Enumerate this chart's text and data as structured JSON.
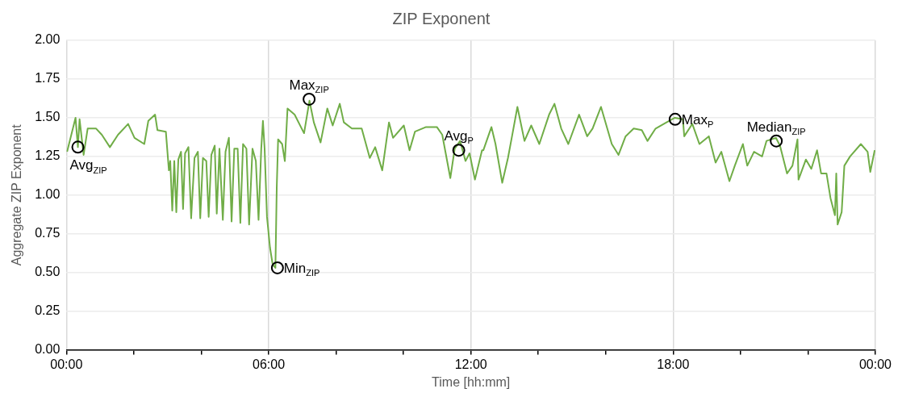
{
  "chart_data": {
    "type": "line",
    "title": "ZIP Exponent",
    "xlabel": "Time [hh:mm]",
    "ylabel": "Aggregate ZIP Exponent",
    "x": [
      0.02,
      0.27,
      0.34,
      0.39,
      0.51,
      0.63,
      0.88,
      1.05,
      1.29,
      1.53,
      1.83,
      2.02,
      2.31,
      2.43,
      2.63,
      2.7,
      2.95,
      3.04,
      3.08,
      3.14,
      3.2,
      3.26,
      3.32,
      3.4,
      3.46,
      3.52,
      3.62,
      3.7,
      3.8,
      3.9,
      3.97,
      4.05,
      4.15,
      4.22,
      4.3,
      4.4,
      4.46,
      4.54,
      4.64,
      4.72,
      4.82,
      4.9,
      4.98,
      5.08,
      5.16,
      5.24,
      5.34,
      5.42,
      5.52,
      5.62,
      5.7,
      5.78,
      5.83,
      5.88,
      5.95,
      6.04,
      6.12,
      6.2,
      6.24,
      6.28,
      6.4,
      6.48,
      6.56,
      6.77,
      7.05,
      7.21,
      7.34,
      7.54,
      7.74,
      7.9,
      8.11,
      8.23,
      8.47,
      8.76,
      9.0,
      9.16,
      9.37,
      9.57,
      9.69,
      10.01,
      10.18,
      10.34,
      10.67,
      10.99,
      11.15,
      11.39,
      11.52,
      11.68,
      11.84,
      11.96,
      12.12,
      12.33,
      12.37,
      12.61,
      12.73,
      12.93,
      13.1,
      13.22,
      13.38,
      13.59,
      13.79,
      14.03,
      14.32,
      14.48,
      14.68,
      14.89,
      15.21,
      15.45,
      15.61,
      15.86,
      16.18,
      16.38,
      16.59,
      16.83,
      17.07,
      17.24,
      17.48,
      17.72,
      18.05,
      18.29,
      18.33,
      18.57,
      18.78,
      19.06,
      19.26,
      19.43,
      19.67,
      19.83,
      20.07,
      20.2,
      20.4,
      20.64,
      20.77,
      21.05,
      21.17,
      21.38,
      21.54,
      21.69,
      21.72,
      21.94,
      22.1,
      22.27,
      22.39,
      22.55,
      22.67,
      22.8,
      22.84,
      22.88,
      23.0,
      23.08,
      23.25,
      23.57,
      23.77,
      23.85,
      23.98
    ],
    "series": [
      {
        "color": "#70ad47",
        "values": [
          1.28,
          1.5,
          1.31,
          1.49,
          1.26,
          1.43,
          1.43,
          1.39,
          1.31,
          1.39,
          1.46,
          1.37,
          1.33,
          1.48,
          1.52,
          1.42,
          1.41,
          1.16,
          1.22,
          0.9,
          1.22,
          0.89,
          1.23,
          1.28,
          0.91,
          1.27,
          1.31,
          0.85,
          1.24,
          1.28,
          0.85,
          1.24,
          1.22,
          0.86,
          1.26,
          1.32,
          0.88,
          1.3,
          0.84,
          1.28,
          1.37,
          0.83,
          1.3,
          1.3,
          0.82,
          1.33,
          1.3,
          0.81,
          1.3,
          1.22,
          0.84,
          1.3,
          1.48,
          1.3,
          0.86,
          0.66,
          0.55,
          0.53,
          1.05,
          1.36,
          1.33,
          1.22,
          1.56,
          1.52,
          1.4,
          1.61,
          1.47,
          1.34,
          1.56,
          1.45,
          1.59,
          1.47,
          1.43,
          1.43,
          1.24,
          1.31,
          1.16,
          1.47,
          1.37,
          1.45,
          1.29,
          1.41,
          1.44,
          1.44,
          1.39,
          1.11,
          1.3,
          1.35,
          1.22,
          1.27,
          1.1,
          1.29,
          1.29,
          1.44,
          1.33,
          1.08,
          1.24,
          1.38,
          1.57,
          1.35,
          1.45,
          1.33,
          1.52,
          1.59,
          1.43,
          1.33,
          1.52,
          1.38,
          1.43,
          1.57,
          1.33,
          1.26,
          1.38,
          1.43,
          1.42,
          1.35,
          1.43,
          1.46,
          1.5,
          1.49,
          1.38,
          1.46,
          1.33,
          1.38,
          1.21,
          1.28,
          1.09,
          1.19,
          1.33,
          1.19,
          1.28,
          1.25,
          1.35,
          1.37,
          1.32,
          1.14,
          1.19,
          1.36,
          1.1,
          1.23,
          1.17,
          1.29,
          1.14,
          1.14,
          0.98,
          0.87,
          1.14,
          0.81,
          0.89,
          1.19,
          1.25,
          1.33,
          1.28,
          1.15,
          1.29
        ]
      }
    ],
    "xlim": [
      0,
      24
    ],
    "xticks": [
      {
        "value": 0,
        "label": "00:00"
      },
      {
        "value": 2,
        "label": null
      },
      {
        "value": 4,
        "label": null
      },
      {
        "value": 6,
        "label": "06:00"
      },
      {
        "value": 8,
        "label": null
      },
      {
        "value": 10,
        "label": null
      },
      {
        "value": 12,
        "label": "12:00"
      },
      {
        "value": 14,
        "label": null
      },
      {
        "value": 16,
        "label": null
      },
      {
        "value": 18,
        "label": "18:00"
      },
      {
        "value": 20,
        "label": null
      },
      {
        "value": 22,
        "label": null
      },
      {
        "value": 24,
        "label": "00:00"
      }
    ],
    "ylim": [
      0,
      2
    ],
    "yticks": [
      {
        "value": 0,
        "label": "0.00"
      },
      {
        "value": 0.25,
        "label": "0.25"
      },
      {
        "value": 0.5,
        "label": "0.50"
      },
      {
        "value": 0.75,
        "label": "0.75"
      },
      {
        "value": 1,
        "label": "1.00"
      },
      {
        "value": 1.25,
        "label": "1.25"
      },
      {
        "value": 1.5,
        "label": "1.50"
      },
      {
        "value": 1.75,
        "label": "1.75"
      },
      {
        "value": 2,
        "label": "2.00"
      }
    ],
    "grid": true,
    "legend": false,
    "marker": "none",
    "line_style": "solid",
    "annotations": [
      {
        "text": "Avg$_{ZIP}$",
        "x": 0.34,
        "y": 1.31
      },
      {
        "text": "Max$_{ZIP}$",
        "x": 7.2,
        "y": 1.62
      },
      {
        "text": "Min$_{ZIP}$",
        "x": 6.26,
        "y": 0.53
      },
      {
        "text": "Avg$_{P}$",
        "x": 11.64,
        "y": 1.29
      },
      {
        "text": "Max$_{P}$",
        "x": 18.06,
        "y": 1.49
      },
      {
        "text": "Median$_{ZIP}$",
        "x": 21.06,
        "y": 1.35
      }
    ]
  }
}
